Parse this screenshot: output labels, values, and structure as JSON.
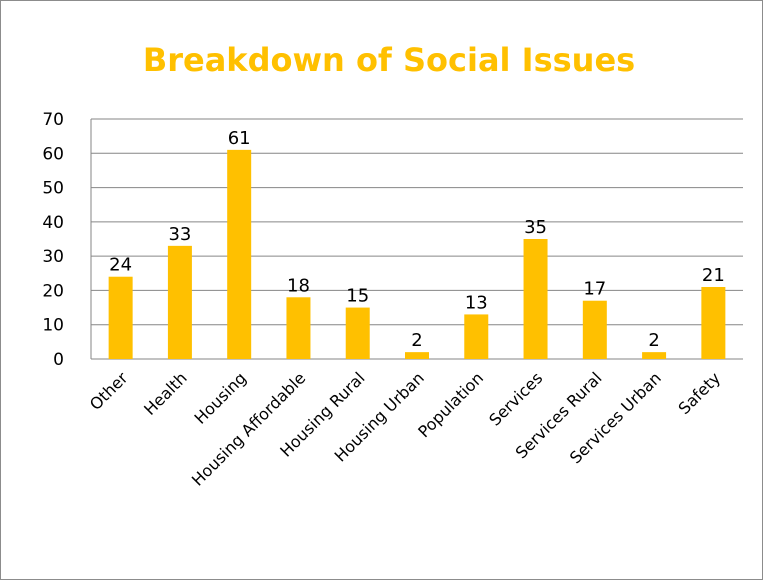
{
  "chart_data": {
    "type": "bar",
    "title": "Breakdown of Social Issues",
    "categories": [
      "Other",
      "Health",
      "Housing",
      "Housing Affordable",
      "Housing Rural",
      "Housing Urban",
      "Population",
      "Services",
      "Services Rural",
      "Services Urban",
      "Safety"
    ],
    "values": [
      24,
      33,
      61,
      18,
      15,
      2,
      13,
      35,
      17,
      2,
      21
    ],
    "ylim": [
      0,
      70
    ],
    "yticks": [
      0,
      10,
      20,
      30,
      40,
      50,
      60,
      70
    ],
    "grid": true,
    "legend": "none",
    "bar_color": "#ffc000",
    "grid_color": "#868686"
  }
}
